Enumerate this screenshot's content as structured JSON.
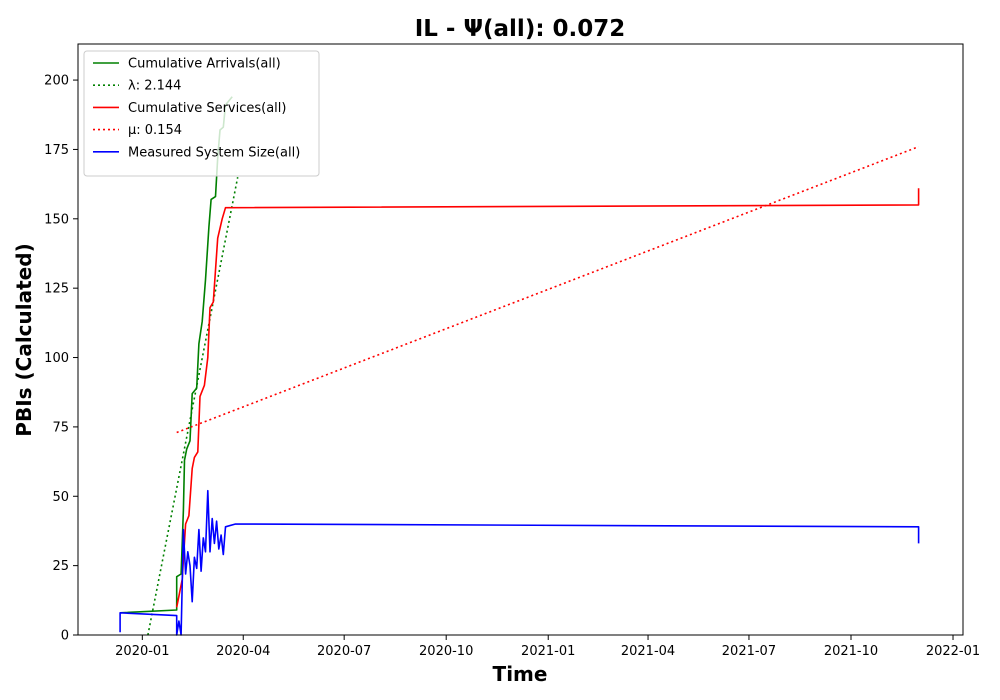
{
  "chart_data": {
    "type": "line",
    "title": "IL -  Ψ(all): 0.072",
    "xlabel": "Time",
    "ylabel": "PBIs (Calculated)",
    "xlim": [
      "2019-11-04",
      "2022-01-10"
    ],
    "ylim": [
      0,
      213
    ],
    "x_ticks": [
      "2020-01",
      "2020-04",
      "2020-07",
      "2020-10",
      "2021-01",
      "2021-04",
      "2021-07",
      "2021-10",
      "2022-01"
    ],
    "y_ticks": [
      0,
      25,
      50,
      75,
      100,
      125,
      150,
      175,
      200
    ],
    "grid": false,
    "legend_position": "top-left",
    "series": [
      {
        "name": "Cumulative Arrivals(all)",
        "color": "#008000",
        "style": "solid",
        "points": [
          [
            "2019-12-12",
            8
          ],
          [
            "2020-02-01",
            9
          ],
          [
            "2020-02-01",
            21
          ],
          [
            "2020-02-05",
            22
          ],
          [
            "2020-02-07",
            45
          ],
          [
            "2020-02-08",
            63
          ],
          [
            "2020-02-10",
            67
          ],
          [
            "2020-02-13",
            70
          ],
          [
            "2020-02-15",
            87
          ],
          [
            "2020-02-19",
            89
          ],
          [
            "2020-02-21",
            105
          ],
          [
            "2020-02-24",
            113
          ],
          [
            "2020-02-27",
            128
          ],
          [
            "2020-03-01",
            147
          ],
          [
            "2020-03-03",
            157
          ],
          [
            "2020-03-07",
            158
          ],
          [
            "2020-03-09",
            172
          ],
          [
            "2020-03-11",
            182
          ],
          [
            "2020-03-14",
            183
          ],
          [
            "2020-03-16",
            191
          ],
          [
            "2020-03-22",
            194
          ]
        ]
      },
      {
        "name": "λ: 2.144",
        "color": "#008000",
        "style": "dotted",
        "points": [
          [
            "2020-01-06",
            0
          ],
          [
            "2020-03-27",
            165
          ]
        ]
      },
      {
        "name": "Cumulative Services(all)",
        "color": "#ff0000",
        "style": "solid",
        "points": [
          [
            "2020-02-01",
            10
          ],
          [
            "2020-02-06",
            20
          ],
          [
            "2020-02-09",
            40
          ],
          [
            "2020-02-12",
            43
          ],
          [
            "2020-02-15",
            60
          ],
          [
            "2020-02-17",
            64
          ],
          [
            "2020-02-20",
            66
          ],
          [
            "2020-02-22",
            86
          ],
          [
            "2020-02-26",
            90
          ],
          [
            "2020-02-29",
            100
          ],
          [
            "2020-03-02",
            118
          ],
          [
            "2020-03-05",
            120
          ],
          [
            "2020-03-09",
            143
          ],
          [
            "2020-03-13",
            150
          ],
          [
            "2020-03-16",
            154
          ],
          [
            "2021-12-01",
            155
          ],
          [
            "2021-12-01",
            161
          ]
        ]
      },
      {
        "name": "μ: 0.154",
        "color": "#ff0000",
        "style": "dotted",
        "points": [
          [
            "2020-02-01",
            73
          ],
          [
            "2021-12-01",
            176
          ]
        ]
      },
      {
        "name": "Measured System Size(all)",
        "color": "#0000ff",
        "style": "solid",
        "points": [
          [
            "2019-12-12",
            1
          ],
          [
            "2019-12-12",
            8
          ],
          [
            "2020-02-01",
            7
          ],
          [
            "2020-02-01",
            0
          ],
          [
            "2020-02-03",
            5
          ],
          [
            "2020-02-05",
            0
          ],
          [
            "2020-02-07",
            38
          ],
          [
            "2020-02-09",
            22
          ],
          [
            "2020-02-11",
            30
          ],
          [
            "2020-02-13",
            25
          ],
          [
            "2020-02-15",
            12
          ],
          [
            "2020-02-17",
            28
          ],
          [
            "2020-02-19",
            24
          ],
          [
            "2020-02-21",
            38
          ],
          [
            "2020-02-23",
            23
          ],
          [
            "2020-02-25",
            35
          ],
          [
            "2020-02-27",
            30
          ],
          [
            "2020-02-29",
            52
          ],
          [
            "2020-03-02",
            30
          ],
          [
            "2020-03-04",
            42
          ],
          [
            "2020-03-06",
            33
          ],
          [
            "2020-03-08",
            41
          ],
          [
            "2020-03-10",
            31
          ],
          [
            "2020-03-12",
            36
          ],
          [
            "2020-03-14",
            29
          ],
          [
            "2020-03-16",
            39
          ],
          [
            "2020-03-25",
            40
          ],
          [
            "2021-12-01",
            39
          ],
          [
            "2021-12-01",
            33
          ]
        ]
      }
    ]
  }
}
